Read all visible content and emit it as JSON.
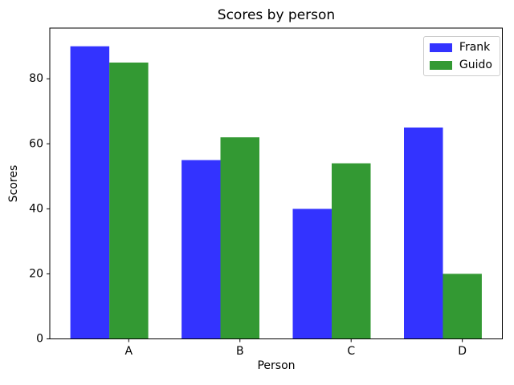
{
  "chart_data": {
    "type": "bar",
    "title": "Scores by person",
    "xlabel": "Person",
    "ylabel": "Scores",
    "categories": [
      "A",
      "B",
      "C",
      "D"
    ],
    "series": [
      {
        "name": "Frank",
        "color": "#3333ff",
        "values": [
          90,
          55,
          40,
          65
        ]
      },
      {
        "name": "Guido",
        "color": "#339933",
        "values": [
          85,
          62,
          54,
          20
        ]
      }
    ],
    "ylim": [
      0,
      95.6
    ],
    "yticks": [
      0,
      20,
      40,
      60,
      80
    ],
    "grid": false,
    "legend_position": "upper right",
    "background_color": "#ffffff",
    "axis_color": "#000000",
    "text_color": "#000000",
    "legend_border_color": "#cccccc"
  }
}
